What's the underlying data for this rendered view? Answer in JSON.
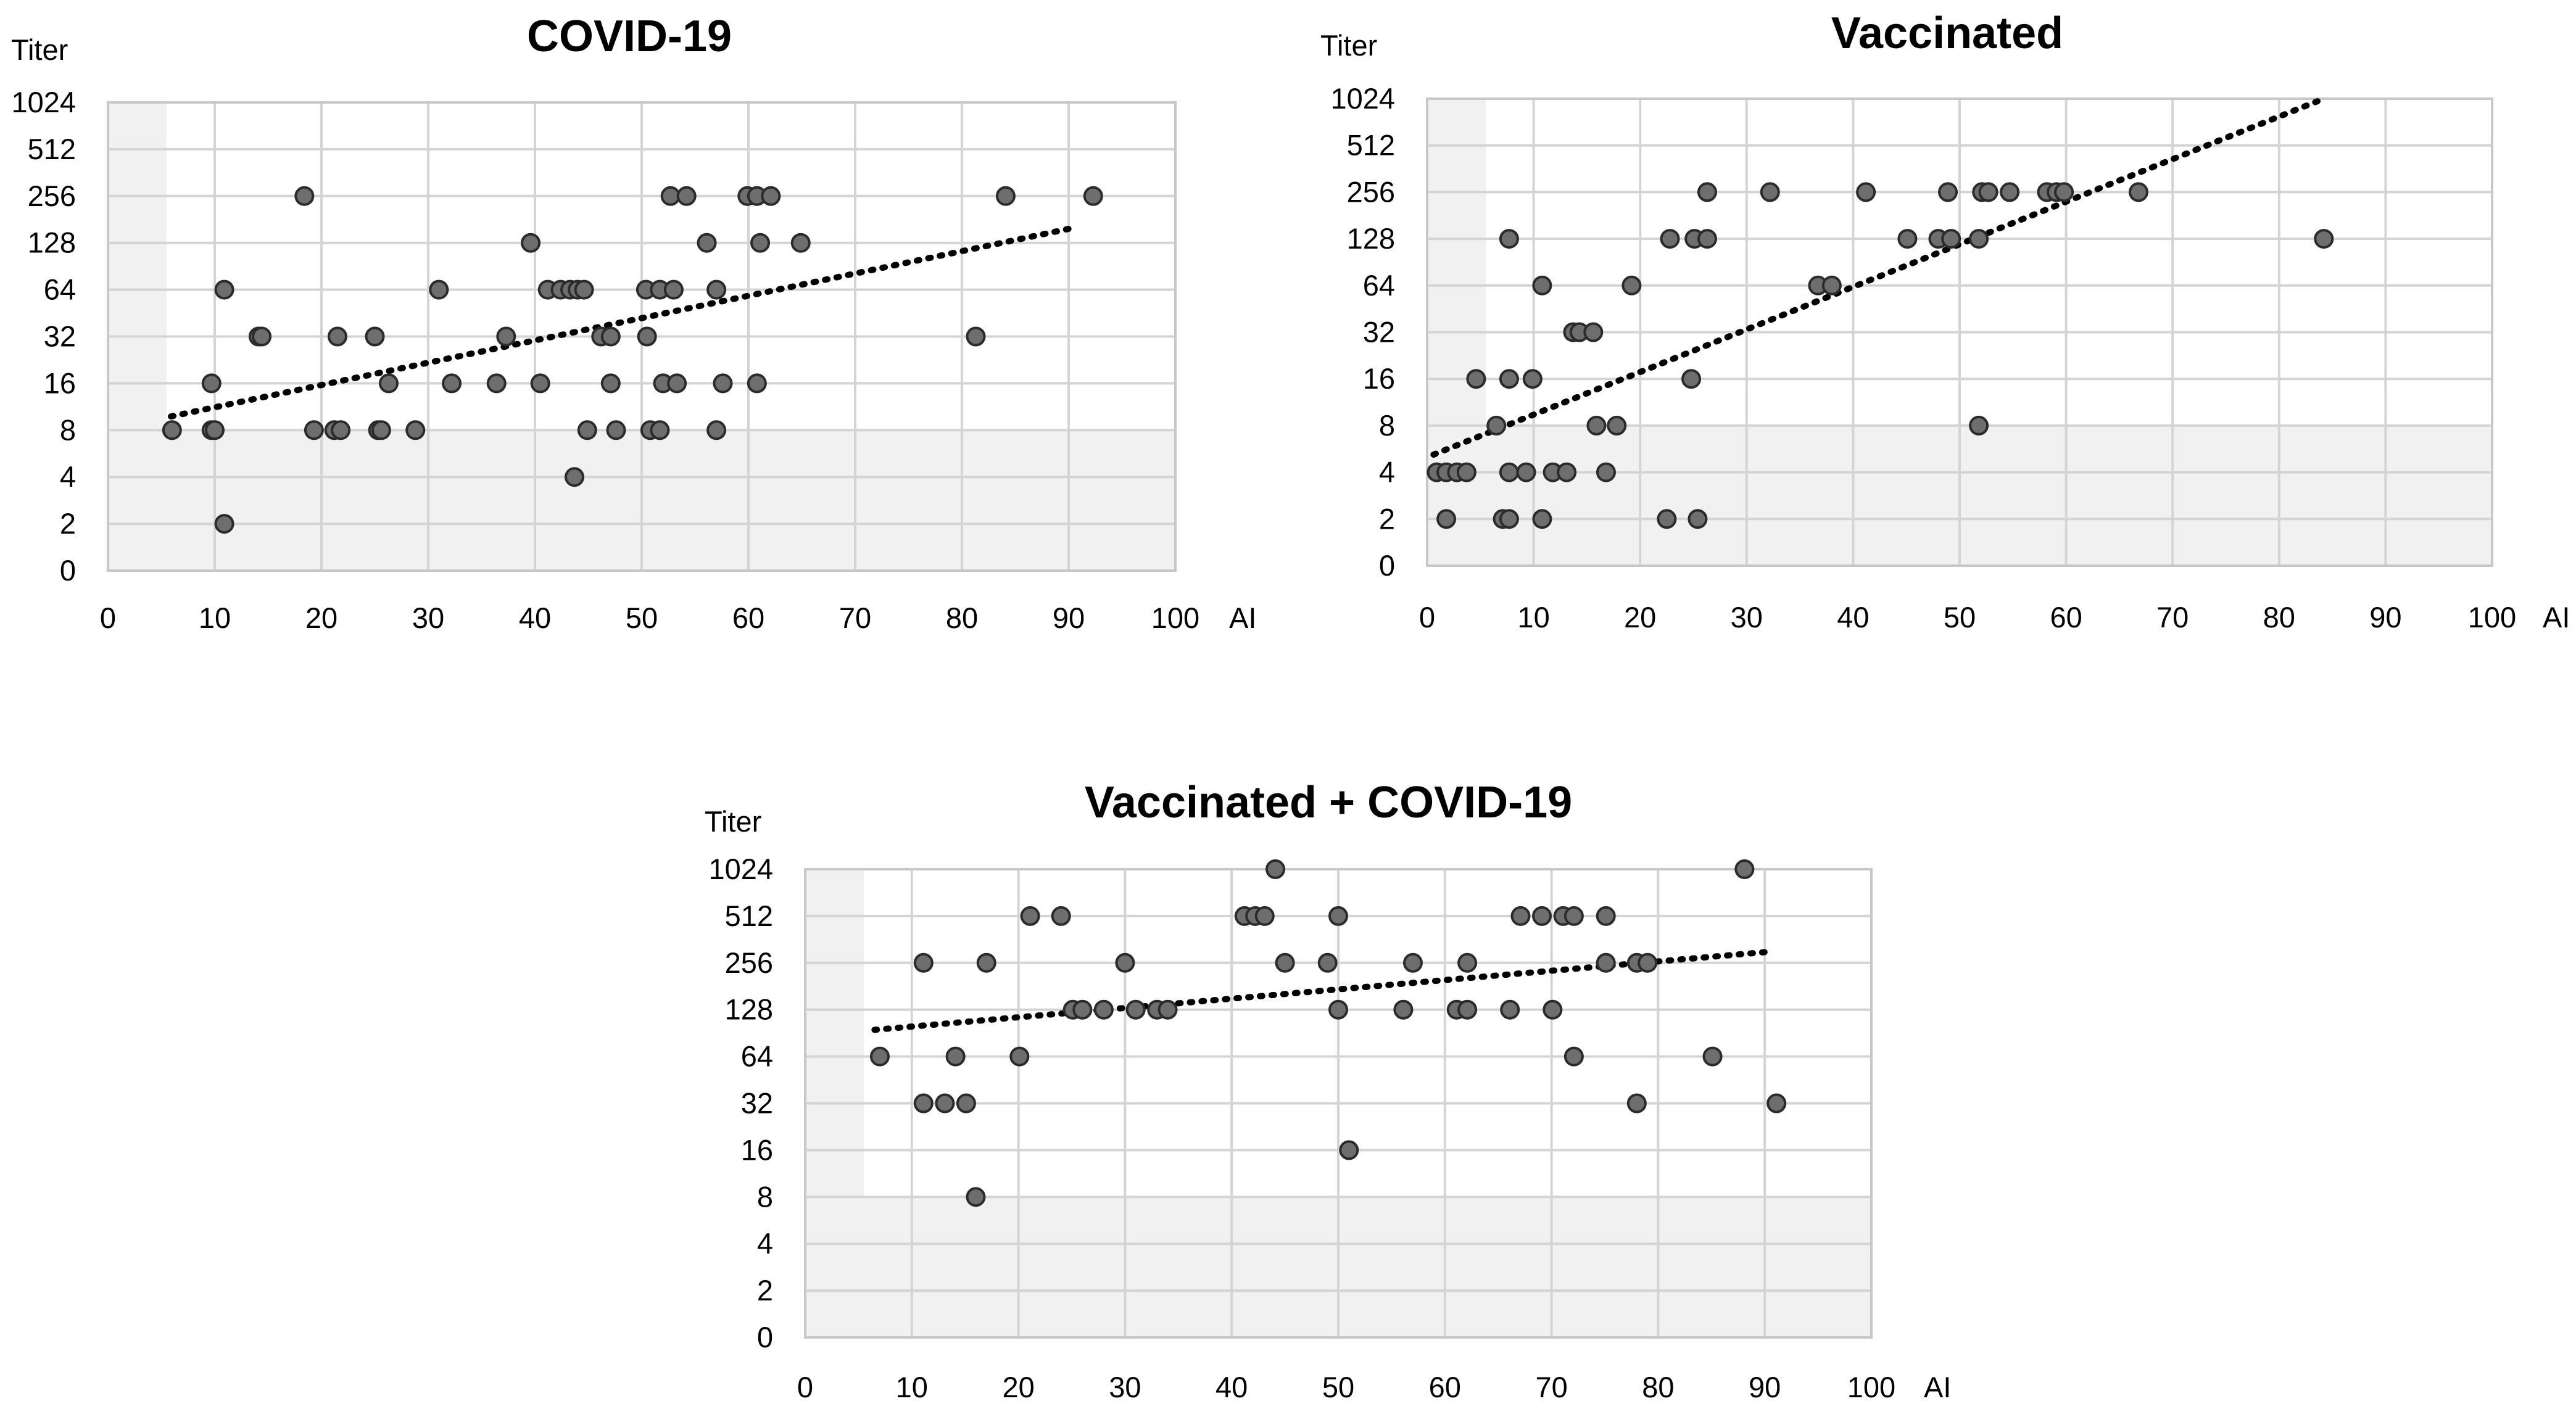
{
  "figure": {
    "colors": {
      "point_fill": "#6e6e6e",
      "point_stroke": "#2b2b2b",
      "gridline": "#d4d4d4",
      "shaded_region": "#f1f1f1",
      "trendline": "#000000"
    }
  },
  "chart_data": [
    {
      "type": "scatter",
      "title": "COVID-19",
      "ylabel": "Titer",
      "xlabel": "AI",
      "xlim": [
        0,
        100
      ],
      "x_ticks": [
        "0",
        "10",
        "20",
        "30",
        "40",
        "50",
        "60",
        "70",
        "80",
        "90",
        "100"
      ],
      "y_ticks": [
        "0",
        "2",
        "4",
        "8",
        "16",
        "32",
        "64",
        "128",
        "256",
        "512",
        "1024"
      ],
      "y_scale": "log2 categorical (0 at bottom, then 2..1024)",
      "shaded_regions": [
        {
          "description": "AI below cut-off",
          "x_range": [
            0,
            5.5
          ],
          "y_range": [
            "0",
            "1024"
          ]
        },
        {
          "description": "Titer below cut-off",
          "x_range": [
            0,
            100
          ],
          "y_range": [
            "0",
            "8"
          ]
        }
      ],
      "trendline": {
        "x": [
          5.9,
          90.1
        ],
        "y": [
          9.8,
          158
        ]
      },
      "points": [
        [
          6,
          8
        ],
        [
          9.7,
          8
        ],
        [
          10,
          8
        ],
        [
          9.7,
          16
        ],
        [
          10.9,
          64
        ],
        [
          10.9,
          2
        ],
        [
          14.1,
          32
        ],
        [
          14.4,
          32
        ],
        [
          18.4,
          256
        ],
        [
          19.3,
          8
        ],
        [
          21.2,
          8
        ],
        [
          21.5,
          32
        ],
        [
          21.8,
          8
        ],
        [
          25,
          32
        ],
        [
          25.3,
          8
        ],
        [
          25.6,
          8
        ],
        [
          26.3,
          16
        ],
        [
          28.8,
          8
        ],
        [
          31,
          64
        ],
        [
          32.2,
          16
        ],
        [
          36.4,
          16
        ],
        [
          37.3,
          32
        ],
        [
          39.6,
          128
        ],
        [
          40.5,
          16
        ],
        [
          41.2,
          64
        ],
        [
          42.4,
          64
        ],
        [
          43.3,
          64
        ],
        [
          44,
          64
        ],
        [
          44.6,
          64
        ],
        [
          43.7,
          4
        ],
        [
          44.9,
          8
        ],
        [
          46.2,
          32
        ],
        [
          47.1,
          32
        ],
        [
          47.1,
          16
        ],
        [
          47.6,
          8
        ],
        [
          50.4,
          64
        ],
        [
          50.5,
          32
        ],
        [
          50.8,
          8
        ],
        [
          51.7,
          8
        ],
        [
          51.7,
          64
        ],
        [
          52,
          16
        ],
        [
          52.7,
          256
        ],
        [
          53,
          64
        ],
        [
          53.3,
          16
        ],
        [
          54.2,
          256
        ],
        [
          56.1,
          128
        ],
        [
          57,
          64
        ],
        [
          57,
          8
        ],
        [
          57.6,
          16
        ],
        [
          59.9,
          256
        ],
        [
          60.8,
          256
        ],
        [
          61.1,
          128
        ],
        [
          60.8,
          16
        ],
        [
          62.1,
          256
        ],
        [
          64.9,
          128
        ],
        [
          81.3,
          32
        ],
        [
          84.1,
          256
        ],
        [
          92.3,
          256
        ]
      ]
    },
    {
      "type": "scatter",
      "title": "Vaccinated",
      "ylabel": "Titer",
      "xlabel": "AI",
      "xlim": [
        0,
        100
      ],
      "x_ticks": [
        "0",
        "10",
        "20",
        "30",
        "40",
        "50",
        "60",
        "70",
        "80",
        "90",
        "100"
      ],
      "y_ticks": [
        "0",
        "2",
        "4",
        "8",
        "16",
        "32",
        "64",
        "128",
        "256",
        "512",
        "1024"
      ],
      "y_scale": "log2 categorical (0 at bottom, then 2..1024)",
      "shaded_regions": [
        {
          "description": "AI below cut-off",
          "x_range": [
            0,
            5.5
          ],
          "y_range": [
            "0",
            "1024"
          ]
        },
        {
          "description": "Titer below cut-off",
          "x_range": [
            0,
            100
          ],
          "y_range": [
            "0",
            "8"
          ]
        }
      ],
      "trendline": {
        "x": [
          0.6,
          84.2
        ],
        "y": [
          5.2,
          1024
        ]
      },
      "points": [
        [
          0.9,
          4
        ],
        [
          1.8,
          4
        ],
        [
          2.8,
          4
        ],
        [
          3.7,
          4
        ],
        [
          1.8,
          2
        ],
        [
          4.6,
          16
        ],
        [
          6.5,
          8
        ],
        [
          7.1,
          2
        ],
        [
          7.7,
          2
        ],
        [
          7.7,
          4
        ],
        [
          7.7,
          128
        ],
        [
          7.7,
          16
        ],
        [
          9.3,
          4
        ],
        [
          9.9,
          16
        ],
        [
          10.8,
          64
        ],
        [
          10.8,
          2
        ],
        [
          11.8,
          4
        ],
        [
          13.1,
          4
        ],
        [
          13.7,
          32
        ],
        [
          14.3,
          32
        ],
        [
          15.6,
          32
        ],
        [
          15.9,
          8
        ],
        [
          16.8,
          4
        ],
        [
          17.8,
          8
        ],
        [
          19.2,
          64
        ],
        [
          22.5,
          2
        ],
        [
          22.8,
          128
        ],
        [
          24.8,
          16
        ],
        [
          25.1,
          128
        ],
        [
          25.4,
          2
        ],
        [
          26.3,
          128
        ],
        [
          26.3,
          256
        ],
        [
          32.2,
          256
        ],
        [
          36.7,
          64
        ],
        [
          38,
          64
        ],
        [
          41.2,
          256
        ],
        [
          45.1,
          128
        ],
        [
          48,
          128
        ],
        [
          48.9,
          256
        ],
        [
          49.2,
          128
        ],
        [
          51.8,
          8
        ],
        [
          51.8,
          128
        ],
        [
          52.1,
          256
        ],
        [
          52.7,
          256
        ],
        [
          54.7,
          256
        ],
        [
          58.2,
          256
        ],
        [
          59.1,
          256
        ],
        [
          59.8,
          256
        ],
        [
          66.8,
          256
        ],
        [
          84.2,
          128
        ]
      ]
    },
    {
      "type": "scatter",
      "title": "Vaccinated + COVID-19",
      "ylabel": "Titer",
      "xlabel": "AI",
      "xlim": [
        0,
        100
      ],
      "x_ticks": [
        "0",
        "10",
        "20",
        "30",
        "40",
        "50",
        "60",
        "70",
        "80",
        "90",
        "100"
      ],
      "y_ticks": [
        "0",
        "2",
        "4",
        "8",
        "16",
        "32",
        "64",
        "128",
        "256",
        "512",
        "1024"
      ],
      "y_scale": "log2 categorical (0 at bottom, then 2..1024)",
      "shaded_regions": [
        {
          "description": "AI below cut-off",
          "x_range": [
            0,
            5.5
          ],
          "y_range": [
            "0",
            "1024"
          ]
        },
        {
          "description": "Titer below cut-off",
          "x_range": [
            0,
            100
          ],
          "y_range": [
            "0",
            "8"
          ]
        }
      ],
      "trendline": {
        "x": [
          6.5,
          90
        ],
        "y": [
          95,
          300
        ]
      },
      "points": [
        [
          7,
          64
        ],
        [
          11.1,
          256
        ],
        [
          11.1,
          32
        ],
        [
          13.1,
          32
        ],
        [
          14.1,
          64
        ],
        [
          15.1,
          32
        ],
        [
          16,
          8
        ],
        [
          17,
          256
        ],
        [
          20.1,
          64
        ],
        [
          21.1,
          512
        ],
        [
          24,
          512
        ],
        [
          25.1,
          128
        ],
        [
          26,
          128
        ],
        [
          28,
          128
        ],
        [
          30,
          256
        ],
        [
          31,
          128
        ],
        [
          33,
          128
        ],
        [
          34,
          128
        ],
        [
          41.2,
          512
        ],
        [
          42.2,
          512
        ],
        [
          43.1,
          512
        ],
        [
          44.1,
          1024
        ],
        [
          45,
          256
        ],
        [
          49,
          256
        ],
        [
          50,
          512
        ],
        [
          50,
          128
        ],
        [
          51,
          16
        ],
        [
          56.1,
          128
        ],
        [
          57,
          256
        ],
        [
          61.1,
          128
        ],
        [
          62.1,
          128
        ],
        [
          62.1,
          256
        ],
        [
          66.1,
          128
        ],
        [
          67.1,
          512
        ],
        [
          69.1,
          512
        ],
        [
          70.1,
          128
        ],
        [
          71.1,
          512
        ],
        [
          72.1,
          512
        ],
        [
          72.1,
          64
        ],
        [
          75.1,
          256
        ],
        [
          75.1,
          512
        ],
        [
          78,
          32
        ],
        [
          78,
          256
        ],
        [
          79,
          256
        ],
        [
          85.1,
          64
        ],
        [
          88.1,
          1024
        ],
        [
          91.1,
          32
        ]
      ]
    }
  ]
}
